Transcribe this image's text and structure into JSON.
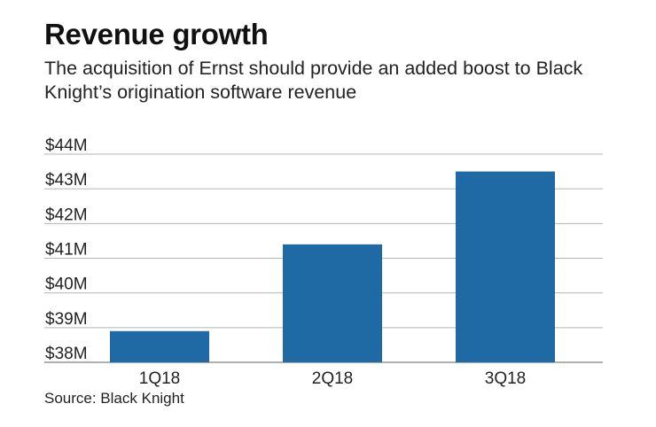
{
  "title": "Revenue growth",
  "subtitle": "The acquisition of Ernst should provide an added boost to Black Knight’s origination software revenue",
  "source": "Source: Black Knight",
  "colors": {
    "bar": "#1f6aa5",
    "grid": "#b5b5b5",
    "axis": "#7f7f7f"
  },
  "chart_data": {
    "type": "bar",
    "title": "Revenue growth",
    "xlabel": "",
    "ylabel": "",
    "categories": [
      "1Q18",
      "2Q18",
      "3Q18"
    ],
    "values": [
      38.9,
      41.4,
      43.5
    ],
    "ylim": [
      38,
      44
    ],
    "yticks": [
      38,
      39,
      40,
      41,
      42,
      43,
      44
    ],
    "ytick_labels": [
      "$38M",
      "$39M",
      "$40M",
      "$41M",
      "$42M",
      "$43M",
      "$44M"
    ],
    "grid": true
  }
}
